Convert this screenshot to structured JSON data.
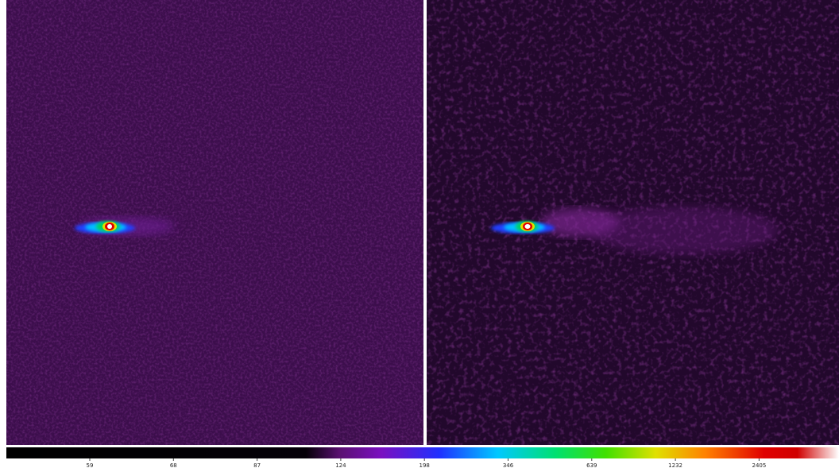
{
  "colorbar": {
    "ticks": [
      "59",
      "68",
      "87",
      "124",
      "198",
      "346",
      "639",
      "1232",
      "2405"
    ]
  }
}
